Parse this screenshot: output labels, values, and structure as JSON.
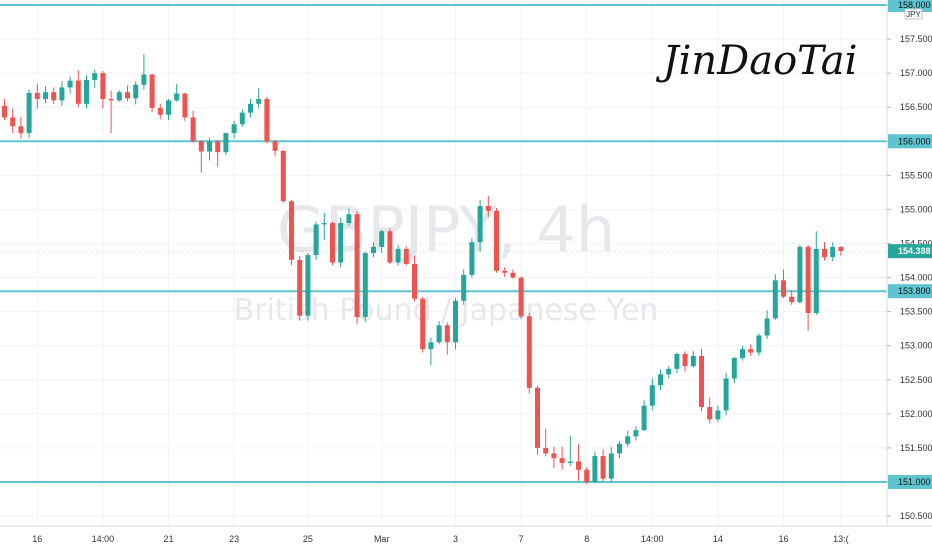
{
  "chart_data": {
    "type": "candlestick",
    "symbol": "GBPJPY, 4h",
    "instrument_name": "British Pound / Japanese Yen",
    "currency": "JPY",
    "signature": "JinDaoTai",
    "last_price": 154.388,
    "ylim": [
      150.35,
      158.05
    ],
    "y_ticks": [
      150.5,
      151.0,
      151.5,
      152.0,
      152.5,
      153.0,
      153.5,
      154.0,
      154.5,
      155.0,
      155.5,
      156.0,
      156.5,
      157.0,
      157.5,
      158.0
    ],
    "y_tick_labels": [
      "150.500",
      "151.000",
      "151.500",
      "152.000",
      "152.500",
      "153.000",
      "153.500",
      "154.000",
      "154.500",
      "155.000",
      "155.500",
      "156.000",
      "156.500",
      "157.000",
      "157.500",
      "158.000"
    ],
    "horizontal_levels": [
      {
        "value": 158.0,
        "label": "158.000"
      },
      {
        "value": 156.0,
        "label": "156.000"
      },
      {
        "value": 153.8,
        "label": "153.800"
      },
      {
        "value": 151.0,
        "label": "151.000"
      }
    ],
    "x_labels": [
      "16",
      "14:00",
      "21",
      "23",
      "25",
      "Mar",
      "3",
      "7",
      "8",
      "14:00",
      "14",
      "16",
      "13:("
    ],
    "x_label_index": [
      4,
      12,
      20,
      28,
      37,
      46,
      55,
      63,
      71,
      79,
      87,
      95,
      102
    ],
    "candles": [
      [
        156.52,
        156.62,
        156.31,
        156.35
      ],
      [
        156.35,
        156.48,
        156.12,
        156.22
      ],
      [
        156.22,
        156.36,
        156.04,
        156.12
      ],
      [
        156.12,
        156.76,
        156.05,
        156.71
      ],
      [
        156.71,
        156.84,
        156.48,
        156.62
      ],
      [
        156.62,
        156.81,
        156.56,
        156.72
      ],
      [
        156.72,
        156.79,
        156.55,
        156.6
      ],
      [
        156.6,
        156.88,
        156.52,
        156.79
      ],
      [
        156.79,
        156.95,
        156.7,
        156.89
      ],
      [
        156.89,
        157.04,
        156.5,
        156.55
      ],
      [
        156.55,
        156.97,
        156.48,
        156.9
      ],
      [
        156.9,
        157.05,
        156.78,
        157.0
      ],
      [
        157.0,
        157.03,
        156.48,
        156.62
      ],
      [
        156.62,
        156.74,
        156.12,
        156.6
      ],
      [
        156.6,
        156.75,
        156.58,
        156.72
      ],
      [
        156.72,
        156.82,
        156.59,
        156.63
      ],
      [
        156.63,
        156.88,
        156.54,
        156.83
      ],
      [
        156.83,
        157.28,
        156.76,
        156.98
      ],
      [
        156.98,
        156.99,
        156.43,
        156.49
      ],
      [
        156.49,
        156.55,
        156.32,
        156.39
      ],
      [
        156.39,
        156.62,
        156.31,
        156.6
      ],
      [
        156.6,
        156.84,
        156.58,
        156.7
      ],
      [
        156.7,
        156.71,
        156.3,
        156.35
      ],
      [
        156.35,
        156.45,
        155.98,
        156.0
      ],
      [
        156.0,
        156.02,
        155.54,
        155.85
      ],
      [
        155.85,
        156.05,
        155.72,
        156.0
      ],
      [
        156.0,
        156.02,
        155.63,
        155.84
      ],
      [
        155.84,
        156.12,
        155.8,
        156.12
      ],
      [
        156.12,
        156.3,
        156.04,
        156.25
      ],
      [
        156.25,
        156.47,
        156.21,
        156.42
      ],
      [
        156.42,
        156.62,
        156.35,
        156.55
      ],
      [
        156.55,
        156.78,
        156.48,
        156.62
      ],
      [
        156.62,
        156.65,
        155.97,
        156.0
      ],
      [
        156.0,
        156.02,
        155.78,
        155.86
      ],
      [
        155.86,
        155.87,
        155.1,
        155.12
      ],
      [
        155.12,
        155.14,
        154.18,
        154.26
      ],
      [
        154.26,
        154.32,
        153.37,
        153.44
      ],
      [
        153.44,
        154.36,
        153.37,
        154.33
      ],
      [
        154.33,
        154.82,
        154.26,
        154.78
      ],
      [
        154.78,
        154.95,
        154.55,
        154.8
      ],
      [
        154.8,
        154.82,
        154.18,
        154.22
      ],
      [
        154.22,
        154.88,
        154.15,
        154.8
      ],
      [
        154.8,
        155.01,
        154.76,
        154.93
      ],
      [
        154.93,
        154.97,
        153.31,
        153.42
      ],
      [
        153.42,
        154.38,
        153.35,
        154.36
      ],
      [
        154.36,
        154.52,
        154.3,
        154.45
      ],
      [
        154.45,
        154.7,
        154.36,
        154.68
      ],
      [
        154.68,
        154.72,
        154.2,
        154.22
      ],
      [
        154.22,
        154.48,
        154.18,
        154.42
      ],
      [
        154.42,
        154.46,
        154.18,
        154.2
      ],
      [
        154.2,
        154.32,
        153.65,
        153.69
      ],
      [
        153.69,
        153.72,
        152.9,
        152.95
      ],
      [
        152.95,
        153.12,
        152.71,
        153.05
      ],
      [
        153.05,
        153.36,
        153.02,
        153.3
      ],
      [
        153.3,
        153.34,
        152.87,
        153.05
      ],
      [
        153.05,
        153.7,
        152.95,
        153.66
      ],
      [
        153.66,
        154.12,
        153.6,
        154.04
      ],
      [
        154.04,
        154.58,
        154.0,
        154.52
      ],
      [
        154.52,
        155.14,
        154.38,
        155.05
      ],
      [
        155.05,
        155.2,
        154.89,
        154.98
      ],
      [
        154.98,
        155.02,
        154.07,
        154.1
      ],
      [
        154.1,
        154.15,
        154.01,
        154.07
      ],
      [
        154.07,
        154.12,
        153.98,
        154.0
      ],
      [
        154.0,
        154.02,
        153.4,
        153.43
      ],
      [
        153.43,
        153.48,
        152.3,
        152.38
      ],
      [
        152.38,
        152.41,
        151.4,
        151.5
      ],
      [
        151.5,
        151.78,
        151.38,
        151.42
      ],
      [
        151.42,
        151.52,
        151.2,
        151.35
      ],
      [
        151.35,
        151.52,
        151.18,
        151.28
      ],
      [
        151.28,
        151.68,
        151.24,
        151.3
      ],
      [
        151.3,
        151.55,
        151.02,
        151.18
      ],
      [
        151.18,
        151.22,
        150.97,
        151.0
      ],
      [
        151.0,
        151.45,
        150.99,
        151.38
      ],
      [
        151.38,
        151.48,
        151.01,
        151.05
      ],
      [
        151.05,
        151.51,
        151.0,
        151.42
      ],
      [
        151.42,
        151.6,
        151.35,
        151.56
      ],
      [
        151.56,
        151.75,
        151.52,
        151.67
      ],
      [
        151.67,
        151.82,
        151.61,
        151.76
      ],
      [
        151.76,
        152.2,
        151.75,
        152.12
      ],
      [
        152.12,
        152.52,
        152.05,
        152.42
      ],
      [
        152.42,
        152.65,
        152.35,
        152.58
      ],
      [
        152.58,
        152.7,
        152.52,
        152.66
      ],
      [
        152.66,
        152.9,
        152.6,
        152.88
      ],
      [
        152.88,
        152.92,
        152.62,
        152.7
      ],
      [
        152.7,
        152.92,
        152.68,
        152.85
      ],
      [
        152.85,
        152.95,
        152.04,
        152.1
      ],
      [
        152.1,
        152.24,
        151.86,
        151.92
      ],
      [
        151.92,
        152.12,
        151.88,
        152.05
      ],
      [
        152.05,
        152.6,
        151.98,
        152.52
      ],
      [
        152.52,
        152.84,
        152.45,
        152.82
      ],
      [
        152.82,
        153.0,
        152.78,
        152.95
      ],
      [
        152.95,
        153.02,
        152.85,
        152.9
      ],
      [
        152.9,
        153.18,
        152.85,
        153.15
      ],
      [
        153.15,
        153.52,
        153.1,
        153.4
      ],
      [
        153.4,
        154.05,
        153.38,
        153.96
      ],
      [
        153.96,
        154.12,
        153.7,
        153.72
      ],
      [
        153.72,
        153.82,
        153.6,
        153.64
      ],
      [
        153.64,
        154.48,
        153.62,
        154.45
      ],
      [
        154.45,
        154.48,
        153.22,
        153.48
      ],
      [
        153.48,
        154.68,
        153.45,
        154.42
      ],
      [
        154.42,
        154.52,
        154.25,
        154.3
      ],
      [
        154.3,
        154.52,
        154.24,
        154.45
      ],
      [
        154.45,
        154.46,
        154.32,
        154.39
      ]
    ]
  }
}
